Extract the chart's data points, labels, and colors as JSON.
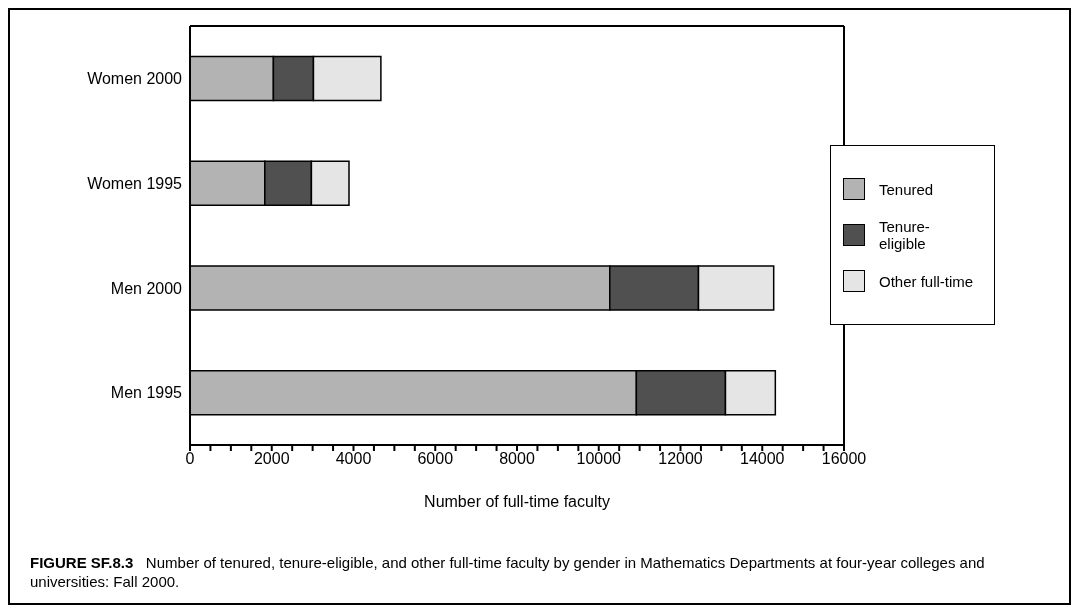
{
  "chart_data": {
    "type": "bar",
    "orientation": "horizontal",
    "stacked": true,
    "title": "FIGURE SF.8.3",
    "annotations": [
      "Number of tenured, tenure-eligible, and other full-time faculty by gender in Mathematics Departments at four-year colleges and universities: Fall 2000."
    ],
    "xlabel": "Number of full-time faculty",
    "categories": [
      "Women 2000",
      "Women 1995",
      "Men 2000",
      "Men 1995"
    ],
    "series": [
      {
        "name": "Tenured",
        "color": "#b3b3b3",
        "values": [
          2040,
          1830,
          10270,
          10920
        ]
      },
      {
        "name": "Tenure-eligible",
        "color": "#505050",
        "values": [
          980,
          1140,
          2170,
          2180
        ]
      },
      {
        "name": "Other full-time",
        "color": "#e5e5e5",
        "values": [
          1650,
          920,
          1840,
          1220
        ]
      }
    ],
    "xlim": [
      0,
      16000
    ],
    "xticks": [
      0,
      {
        "value": 500,
        "label": null
      },
      2000,
      {
        "value": 1000,
        "label": null
      },
      {
        "value": 1500,
        "label": null
      },
      {
        "value": 2500,
        "label": null
      },
      {
        "value": 3000,
        "label": null
      },
      {
        "value": 3500,
        "label": null
      },
      4000,
      {
        "value": 4500,
        "label": null
      },
      {
        "value": 5000,
        "label": null
      },
      {
        "value": 5500,
        "label": null
      },
      6000,
      {
        "value": 6500,
        "label": null
      },
      {
        "value": 7000,
        "label": null
      },
      {
        "value": 7500,
        "label": null
      },
      8000,
      {
        "value": 8500,
        "label": null
      },
      {
        "value": 9000,
        "label": null
      },
      {
        "value": 9500,
        "label": null
      },
      10000,
      {
        "value": 10500,
        "label": null
      },
      {
        "value": 11000,
        "label": null
      },
      {
        "value": 11500,
        "label": null
      },
      12000,
      {
        "value": 12500,
        "label": null
      },
      {
        "value": 13000,
        "label": null
      },
      {
        "value": 13500,
        "label": null
      },
      14000,
      {
        "value": 14500,
        "label": null
      },
      {
        "value": 15000,
        "label": null
      },
      {
        "value": 15500,
        "label": null
      },
      16000
    ],
    "legend": "right"
  }
}
